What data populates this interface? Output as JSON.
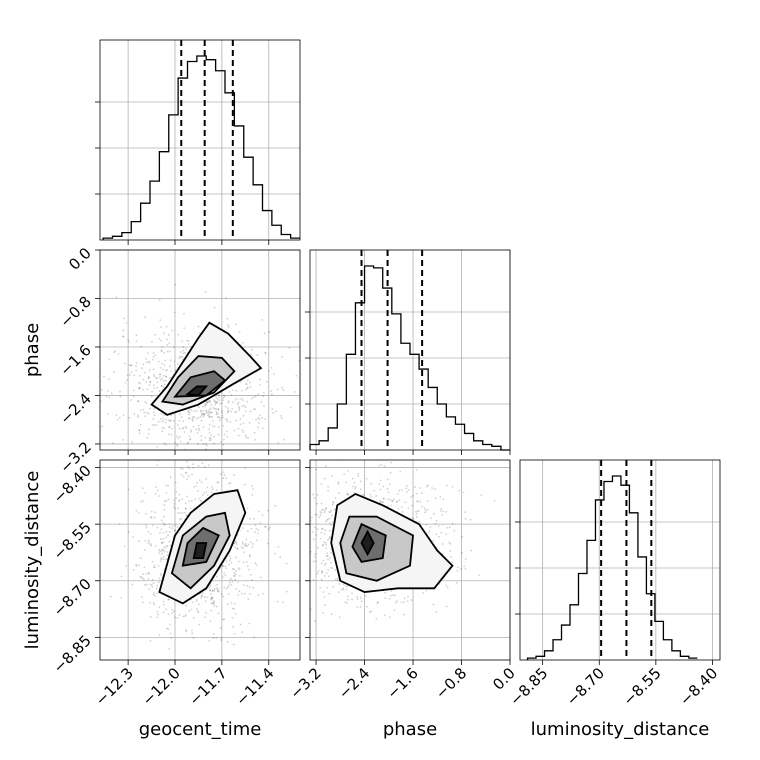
{
  "chart_data": [
    {
      "type": "histogram",
      "parameter": "geocent_time",
      "xlim": [
        -12.48,
        -11.2
      ],
      "quantiles": [
        -11.96,
        -11.81,
        -11.63
      ],
      "bin_edges_start": -12.46,
      "bin_width": 0.06,
      "counts": [
        1,
        2,
        4,
        10,
        20,
        32,
        48,
        68,
        88,
        97,
        100,
        98,
        92,
        80,
        62,
        45,
        30,
        16,
        8,
        3,
        1
      ],
      "grid": true
    },
    {
      "type": "histogram",
      "parameter": "phase",
      "xlim": [
        -3.3,
        0.0
      ],
      "quantiles": [
        -2.45,
        -2.02,
        -1.45
      ],
      "bin_edges_start": -3.3,
      "bin_width": 0.15,
      "counts": [
        3,
        5,
        12,
        25,
        52,
        80,
        100,
        99,
        88,
        74,
        58,
        52,
        44,
        34,
        25,
        18,
        14,
        9,
        5,
        3,
        2,
        0
      ],
      "grid": true
    },
    {
      "type": "histogram",
      "parameter": "luminosity_distance",
      "xlim": [
        -8.91,
        -8.38
      ],
      "quantiles": [
        -8.695,
        -8.628,
        -8.562
      ],
      "bin_edges_start": -8.89,
      "bin_width": 0.0225,
      "counts": [
        1,
        2,
        5,
        11,
        19,
        30,
        47,
        65,
        87,
        97,
        100,
        95,
        80,
        56,
        36,
        21,
        11,
        5,
        2,
        1
      ],
      "grid": true
    },
    {
      "type": "scatter",
      "x": "geocent_time",
      "y": "phase",
      "xlim": [
        -12.48,
        -11.2
      ],
      "ylim": [
        -3.3,
        0.0
      ],
      "contours": [
        [
          [
            -12.15,
            -2.55
          ],
          [
            -12.05,
            -2.25
          ],
          [
            -11.95,
            -1.85
          ],
          [
            -11.85,
            -1.45
          ],
          [
            -11.78,
            -1.2
          ],
          [
            -11.66,
            -1.38
          ],
          [
            -11.52,
            -1.75
          ],
          [
            -11.45,
            -1.95
          ],
          [
            -11.62,
            -2.2
          ],
          [
            -11.85,
            -2.55
          ],
          [
            -12.05,
            -2.72
          ],
          [
            -12.15,
            -2.55
          ]
        ],
        [
          [
            -12.08,
            -2.5
          ],
          [
            -11.98,
            -2.1
          ],
          [
            -11.85,
            -1.75
          ],
          [
            -11.7,
            -1.78
          ],
          [
            -11.62,
            -2.0
          ],
          [
            -11.75,
            -2.35
          ],
          [
            -11.95,
            -2.55
          ],
          [
            -12.08,
            -2.5
          ]
        ],
        [
          [
            -12.0,
            -2.42
          ],
          [
            -11.9,
            -2.1
          ],
          [
            -11.75,
            -2.0
          ],
          [
            -11.68,
            -2.15
          ],
          [
            -11.8,
            -2.4
          ],
          [
            -12.0,
            -2.42
          ]
        ],
        [
          [
            -11.92,
            -2.38
          ],
          [
            -11.86,
            -2.25
          ],
          [
            -11.8,
            -2.25
          ],
          [
            -11.85,
            -2.4
          ],
          [
            -11.92,
            -2.38
          ]
        ]
      ],
      "grid": true
    },
    {
      "type": "scatter",
      "x": "geocent_time",
      "y": "luminosity_distance",
      "xlim": [
        -12.48,
        -11.2
      ],
      "ylim": [
        -8.91,
        -8.38
      ],
      "contours": [
        [
          [
            -12.1,
            -8.73
          ],
          [
            -12.0,
            -8.58
          ],
          [
            -11.9,
            -8.52
          ],
          [
            -11.75,
            -8.47
          ],
          [
            -11.6,
            -8.46
          ],
          [
            -11.55,
            -8.52
          ],
          [
            -11.65,
            -8.62
          ],
          [
            -11.8,
            -8.72
          ],
          [
            -11.95,
            -8.76
          ],
          [
            -12.1,
            -8.73
          ]
        ],
        [
          [
            -12.02,
            -8.68
          ],
          [
            -11.95,
            -8.58
          ],
          [
            -11.8,
            -8.53
          ],
          [
            -11.68,
            -8.52
          ],
          [
            -11.65,
            -8.58
          ],
          [
            -11.75,
            -8.66
          ],
          [
            -11.9,
            -8.72
          ],
          [
            -12.02,
            -8.68
          ]
        ],
        [
          [
            -11.95,
            -8.66
          ],
          [
            -11.92,
            -8.6
          ],
          [
            -11.82,
            -8.56
          ],
          [
            -11.72,
            -8.58
          ],
          [
            -11.8,
            -8.65
          ],
          [
            -11.95,
            -8.66
          ]
        ],
        [
          [
            -11.88,
            -8.64
          ],
          [
            -11.86,
            -8.6
          ],
          [
            -11.8,
            -8.6
          ],
          [
            -11.82,
            -8.64
          ],
          [
            -11.88,
            -8.64
          ]
        ]
      ],
      "grid": true
    },
    {
      "type": "scatter",
      "x": "phase",
      "y": "luminosity_distance",
      "xlim": [
        -3.3,
        0.0
      ],
      "ylim": [
        -8.91,
        -8.38
      ],
      "contours": [
        [
          [
            -2.95,
            -8.6
          ],
          [
            -2.85,
            -8.5
          ],
          [
            -2.55,
            -8.47
          ],
          [
            -2.1,
            -8.5
          ],
          [
            -1.5,
            -8.55
          ],
          [
            -1.2,
            -8.62
          ],
          [
            -0.95,
            -8.66
          ],
          [
            -1.25,
            -8.72
          ],
          [
            -1.85,
            -8.72
          ],
          [
            -2.4,
            -8.73
          ],
          [
            -2.8,
            -8.7
          ],
          [
            -2.95,
            -8.6
          ]
        ],
        [
          [
            -2.8,
            -8.6
          ],
          [
            -2.65,
            -8.53
          ],
          [
            -2.2,
            -8.53
          ],
          [
            -1.6,
            -8.58
          ],
          [
            -1.65,
            -8.66
          ],
          [
            -2.2,
            -8.7
          ],
          [
            -2.7,
            -8.68
          ],
          [
            -2.8,
            -8.6
          ]
        ],
        [
          [
            -2.6,
            -8.61
          ],
          [
            -2.45,
            -8.55
          ],
          [
            -2.05,
            -8.58
          ],
          [
            -2.1,
            -8.64
          ],
          [
            -2.45,
            -8.65
          ],
          [
            -2.6,
            -8.61
          ]
        ],
        [
          [
            -2.45,
            -8.6
          ],
          [
            -2.35,
            -8.57
          ],
          [
            -2.25,
            -8.6
          ],
          [
            -2.35,
            -8.63
          ],
          [
            -2.45,
            -8.6
          ]
        ]
      ],
      "grid": true
    }
  ],
  "axes": {
    "x_labels": [
      "geocent_time",
      "phase",
      "luminosity_distance"
    ],
    "y_labels": [
      "phase",
      "luminosity_distance"
    ],
    "geocent_time_ticks": [
      "−12.3",
      "−12.0",
      "−11.7",
      "−11.4"
    ],
    "geocent_time_tick_values": [
      -12.3,
      -12.0,
      -11.7,
      -11.4
    ],
    "phase_ticks": [
      "−3.2",
      "−2.4",
      "−1.6",
      "−0.8",
      "0.0"
    ],
    "phase_tick_values": [
      -3.2,
      -2.4,
      -1.6,
      -0.8,
      0.0
    ],
    "luminosity_distance_ticks": [
      "−8.85",
      "−8.70",
      "−8.55",
      "−8.40"
    ],
    "luminosity_distance_tick_values": [
      -8.85,
      -8.7,
      -8.55,
      -8.4
    ]
  }
}
